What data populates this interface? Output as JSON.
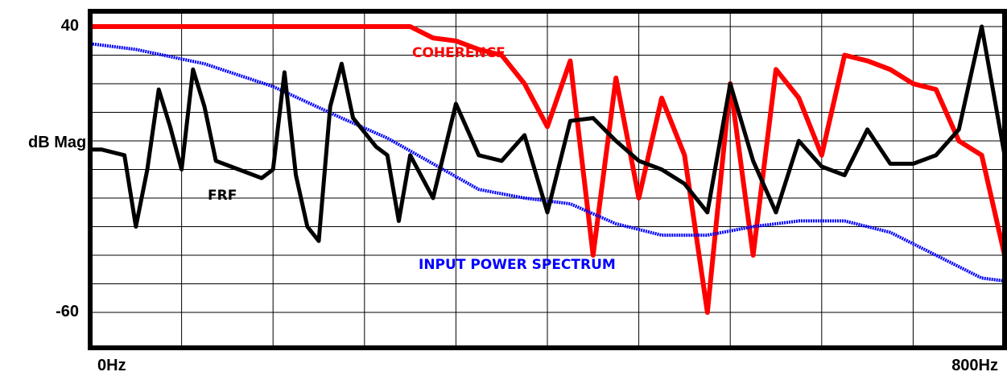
{
  "chart_data": {
    "type": "line",
    "title": "",
    "ylabel": "dB Mag",
    "xlabel": "",
    "x_ticks": [
      "0Hz",
      "800Hz"
    ],
    "y_ticks": [
      "40",
      "-60"
    ],
    "xlim": [
      0,
      800
    ],
    "ylim": [
      -60,
      40
    ],
    "grid": true,
    "annotations": [
      {
        "text": "COHERENCE",
        "color": "#ff0000",
        "series": "COHERENCE"
      },
      {
        "text": "FRF",
        "color": "#000000",
        "series": "FRF"
      },
      {
        "text": "INPUT POWER SPECTRUM",
        "color": "#0000ff",
        "series": "INPUT POWER SPECTRUM"
      }
    ],
    "series": [
      {
        "name": "INPUT POWER SPECTRUM",
        "color": "#0000ff",
        "x": [
          0,
          40,
          100,
          160,
          220,
          260,
          300,
          340,
          380,
          420,
          460,
          500,
          540,
          580,
          620,
          660,
          700,
          740,
          780,
          800
        ],
        "y": [
          34,
          32,
          27,
          19,
          8,
          1,
          -8,
          -17,
          -20,
          -22,
          -29,
          -33,
          -33,
          -30,
          -28,
          -28,
          -32,
          -40,
          -48,
          -49
        ]
      },
      {
        "name": "FRF",
        "color": "#000000",
        "x": [
          0,
          10,
          30,
          40,
          50,
          60,
          70,
          80,
          90,
          100,
          110,
          130,
          150,
          160,
          170,
          180,
          190,
          200,
          210,
          220,
          230,
          250,
          260,
          270,
          280,
          300,
          320,
          340,
          360,
          380,
          400,
          420,
          440,
          460,
          480,
          500,
          520,
          540,
          560,
          580,
          600,
          620,
          640,
          660,
          680,
          700,
          720,
          740,
          760,
          780,
          800
        ],
        "y": [
          -3,
          -3,
          -5,
          -30,
          -10,
          18,
          5,
          -10,
          25,
          12,
          -7,
          -10,
          -13,
          -10,
          24,
          -12,
          -30,
          -35,
          12,
          27,
          8,
          -2,
          -5,
          -28,
          -5,
          -20,
          13,
          -5,
          -7,
          2,
          -25,
          7,
          8,
          0,
          -7,
          -10,
          -15,
          -25,
          20,
          -7,
          -25,
          0,
          -9,
          -12,
          4,
          -8,
          -8,
          -5,
          4,
          40,
          -5
        ]
      },
      {
        "name": "COHERENCE",
        "color": "#ff0000",
        "x": [
          0,
          40,
          80,
          120,
          160,
          200,
          240,
          280,
          300,
          320,
          340,
          360,
          380,
          400,
          420,
          440,
          460,
          480,
          500,
          520,
          540,
          560,
          580,
          600,
          620,
          640,
          660,
          680,
          700,
          720,
          740,
          760,
          780,
          800
        ],
        "y": [
          40,
          40,
          40,
          40,
          40,
          40,
          40,
          40,
          36,
          35,
          32,
          30,
          20,
          5,
          28,
          -40,
          22,
          -20,
          15,
          -5,
          -60,
          20,
          -40,
          25,
          15,
          -5,
          30,
          28,
          25,
          20,
          18,
          0,
          -5,
          -40
        ]
      }
    ]
  }
}
